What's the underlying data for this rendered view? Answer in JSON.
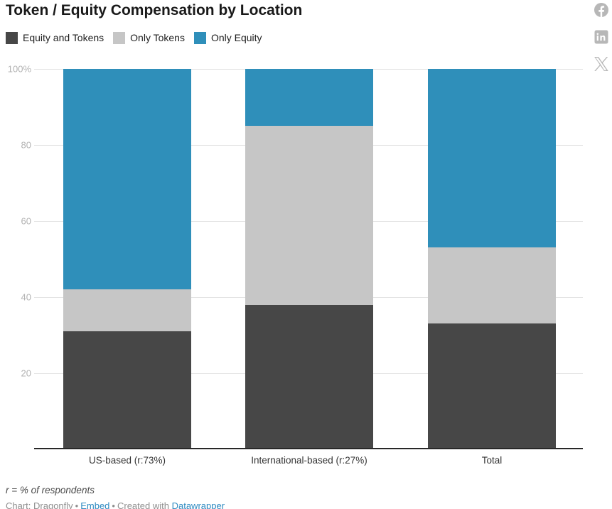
{
  "title": "Token / Equity Compensation by Location",
  "legend": [
    {
      "label": "Equity and Tokens",
      "color": "#474747"
    },
    {
      "label": "Only Tokens",
      "color": "#c6c6c6"
    },
    {
      "label": "Only Equity",
      "color": "#2f8fba"
    }
  ],
  "chart_data": {
    "type": "bar",
    "stacked": true,
    "unit": "%",
    "title": "Token / Equity Compensation by Location",
    "categories": [
      "US-based (r:73%)",
      "International-based (r:27%)",
      "Total"
    ],
    "series": [
      {
        "name": "Equity and Tokens",
        "color": "#474747",
        "values": [
          31,
          38,
          33
        ]
      },
      {
        "name": "Only Tokens",
        "color": "#c6c6c6",
        "values": [
          11,
          47,
          20
        ]
      },
      {
        "name": "Only Equity",
        "color": "#2f8fba",
        "values": [
          58,
          15,
          47
        ]
      }
    ],
    "ylim": [
      0,
      100
    ],
    "y_ticks": [
      {
        "label": "100%",
        "value": 100
      },
      {
        "label": "80",
        "value": 80
      },
      {
        "label": "60",
        "value": 60
      },
      {
        "label": "40",
        "value": 40
      },
      {
        "label": "20",
        "value": 20
      }
    ],
    "grid": true,
    "legend_position": "top"
  },
  "footnote": "r = % of respondents",
  "attribution": {
    "chart_by": "Chart: Dragonfly",
    "separator": "•",
    "embed_link": "Embed",
    "created_with": "Created with",
    "tool_link": "Datawrapper"
  },
  "social_icons": {
    "facebook": "facebook-share",
    "linkedin": "linkedin-share",
    "x": "x-share"
  },
  "colors": {
    "axis_line": "#282828",
    "gridline": "#e4e4e4",
    "tick_text": "#b3b3b3",
    "social_icon": "#b7b7b7",
    "link_blue": "#2d8ac1"
  }
}
